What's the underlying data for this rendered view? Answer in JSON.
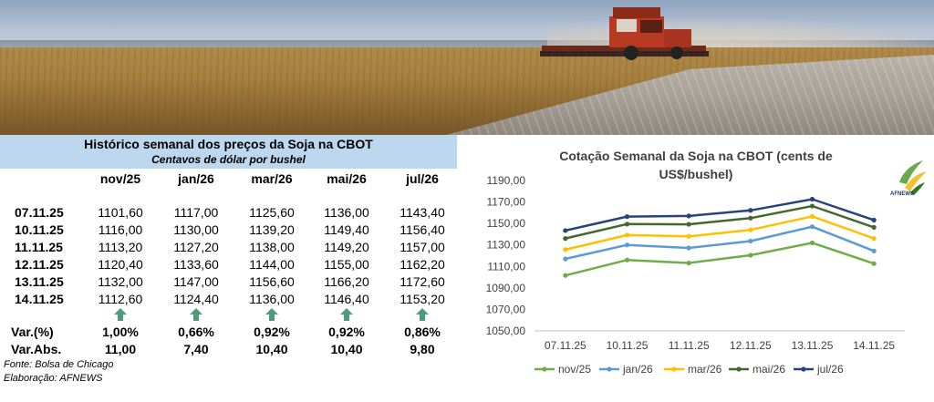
{
  "table": {
    "title": "Histórico semanal dos preços da Soja na CBOT",
    "subtitle": "Centavos de dólar por bushel",
    "columns": [
      "nov/25",
      "jan/26",
      "mar/26",
      "mai/26",
      "jul/26"
    ],
    "rows": [
      {
        "date": "07.11.25",
        "values": [
          "1101,60",
          "1117,00",
          "1125,60",
          "1136,00",
          "1143,40"
        ]
      },
      {
        "date": "10.11.25",
        "values": [
          "1116,00",
          "1130,00",
          "1139,20",
          "1149,40",
          "1156,40"
        ]
      },
      {
        "date": "11.11.25",
        "values": [
          "1113,20",
          "1127,20",
          "1138,00",
          "1149,20",
          "1157,00"
        ]
      },
      {
        "date": "12.11.25",
        "values": [
          "1120,40",
          "1133,60",
          "1144,00",
          "1155,00",
          "1162,20"
        ]
      },
      {
        "date": "13.11.25",
        "values": [
          "1132,00",
          "1147,00",
          "1156,60",
          "1166,20",
          "1172,60"
        ]
      },
      {
        "date": "14.11.25",
        "values": [
          "1112,60",
          "1124,40",
          "1136,00",
          "1146,40",
          "1153,20"
        ]
      }
    ],
    "var_pct": {
      "label": "Var.(%)",
      "values": [
        "1,00%",
        "0,66%",
        "0,92%",
        "0,92%",
        "0,86%"
      ]
    },
    "var_abs": {
      "label": "Var.Abs.",
      "values": [
        "11,00",
        "7,40",
        "10,40",
        "10,40",
        "9,80"
      ]
    },
    "trend_icon": "up-arrow-icon",
    "trend_color": "#4e9a7a",
    "source": "Fonte: Bolsa de Chicago",
    "credit": "Elaboração: AFNEWS",
    "header_bg": "#bdd7ee"
  },
  "logo": {
    "text": "AFNEWS",
    "icon": "afnews-logo-icon"
  },
  "chart_data": {
    "type": "line",
    "title": "Cotação Semanal da Soja na CBOT (cents de US$/bushel)",
    "x": [
      "07.11.25",
      "10.11.25",
      "11.11.25",
      "12.11.25",
      "13.11.25",
      "14.11.25"
    ],
    "ylim": [
      1050,
      1190
    ],
    "yticks": [
      "1050,00",
      "1070,00",
      "1090,00",
      "1110,00",
      "1130,00",
      "1150,00",
      "1170,00",
      "1190,00"
    ],
    "grid": false,
    "legend": "bottom",
    "series": [
      {
        "name": "nov/25",
        "color": "#70ad47",
        "values": [
          1101.6,
          1116.0,
          1113.2,
          1120.4,
          1132.0,
          1112.6
        ]
      },
      {
        "name": "jan/26",
        "color": "#5b9bd5",
        "values": [
          1117.0,
          1130.0,
          1127.2,
          1133.6,
          1147.0,
          1124.4
        ]
      },
      {
        "name": "mar/26",
        "color": "#ffc000",
        "values": [
          1125.6,
          1139.2,
          1138.0,
          1144.0,
          1156.6,
          1136.0
        ]
      },
      {
        "name": "mai/26",
        "color": "#43682b",
        "values": [
          1136.0,
          1149.4,
          1149.2,
          1155.0,
          1166.2,
          1146.4
        ]
      },
      {
        "name": "jul/26",
        "color": "#264478",
        "values": [
          1143.4,
          1156.4,
          1157.0,
          1162.2,
          1172.6,
          1153.2
        ]
      }
    ]
  }
}
